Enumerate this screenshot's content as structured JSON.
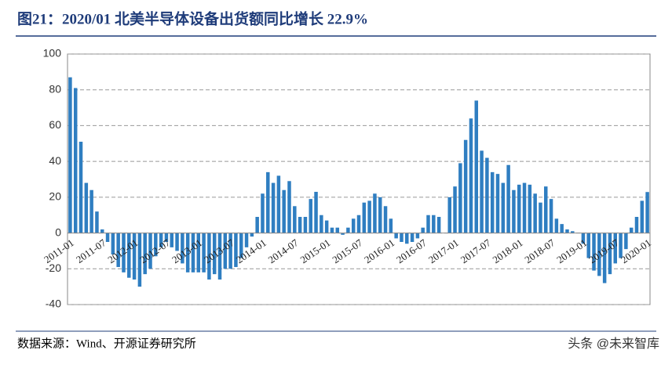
{
  "chart_data": {
    "type": "bar",
    "title": "图21：2020/01 北美半导体设备出货额同比增长 22.9%",
    "source": "数据来源：Wind、开源证券研究所",
    "watermark": "头条 @未来智库",
    "color": "#2f7ec1",
    "grid": true,
    "ylim": [
      -40,
      100
    ],
    "yticks": [
      -40,
      -20,
      0,
      20,
      40,
      60,
      80,
      100
    ],
    "categories": [
      "2011-01",
      null,
      null,
      null,
      null,
      null,
      "2011-07",
      null,
      null,
      null,
      null,
      null,
      "2012-01",
      null,
      null,
      null,
      null,
      null,
      "2012-07",
      null,
      null,
      null,
      null,
      null,
      "2013-01",
      null,
      null,
      null,
      null,
      null,
      "2013-07",
      null,
      null,
      null,
      null,
      null,
      "2014-01",
      null,
      null,
      null,
      null,
      null,
      "2014-07",
      null,
      null,
      null,
      null,
      null,
      "2015-01",
      null,
      null,
      null,
      null,
      null,
      "2015-07",
      null,
      null,
      null,
      null,
      null,
      "2016-01",
      null,
      null,
      null,
      null,
      null,
      "2016-07",
      null,
      null,
      null,
      null,
      null,
      "2017-01",
      null,
      null,
      null,
      null,
      null,
      "2017-07",
      null,
      null,
      null,
      null,
      null,
      "2018-01",
      null,
      null,
      null,
      null,
      null,
      "2018-07",
      null,
      null,
      null,
      null,
      null,
      "2019-01",
      null,
      null,
      null,
      null,
      null,
      "2019-07",
      null,
      null,
      null,
      null,
      null,
      "2020-01"
    ],
    "values": [
      87,
      81,
      51,
      28,
      24,
      12,
      2,
      -5,
      -12,
      -19,
      -22,
      -25,
      -26,
      -30,
      -23,
      -20,
      -13,
      -8,
      -5,
      -8,
      -10,
      -17,
      -22,
      -22,
      -22,
      -22,
      -26,
      -23,
      -26,
      -20,
      -20,
      -19,
      -14,
      -8,
      -2,
      9,
      22,
      34,
      28,
      32,
      24,
      29,
      15,
      9,
      9,
      19,
      23,
      10,
      7,
      3,
      3,
      -1,
      3,
      8,
      10,
      17,
      18,
      22,
      20,
      15,
      8,
      -3,
      -5,
      -6,
      -5,
      -3,
      3,
      10,
      10,
      9,
      0,
      20,
      26,
      39,
      52,
      64,
      74,
      46,
      42,
      34,
      33,
      28,
      38,
      24,
      27,
      28,
      27,
      22,
      17,
      26,
      19,
      8,
      5,
      2,
      1,
      0,
      -6,
      -14,
      -21,
      -24,
      -28,
      -23,
      -17,
      -14,
      -9,
      3,
      9,
      18,
      22.9
    ]
  }
}
